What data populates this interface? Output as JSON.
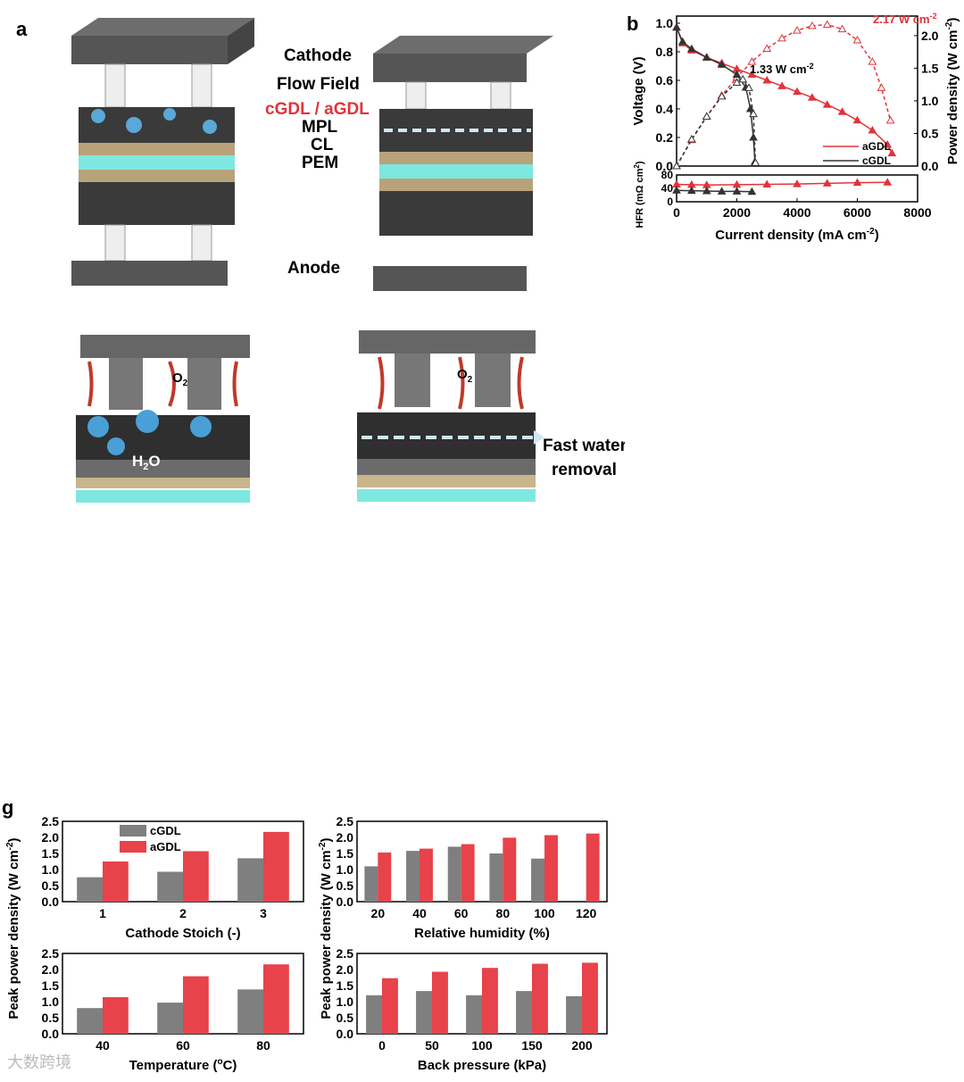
{
  "panel_a": {
    "letter": "a",
    "labels": {
      "cathode": "Cathode",
      "flow_field": "Flow Field",
      "gdl": "cGDL / aGDL",
      "mpl": "MPL",
      "cl": "CL",
      "pem": "PEM",
      "anode": "Anode",
      "o2_left": "O",
      "o2_right": "O",
      "sub2": "2",
      "h2o": "H",
      "h2o_sub": "2",
      "h2o_o": "O",
      "fast_water_1": "Fast water",
      "fast_water_2": "removal"
    }
  },
  "chart_data": [
    {
      "id": "b",
      "letter": "b",
      "type": "line",
      "title": "",
      "xlabel": "Current density (mA cm",
      "xlabel_sup": "-2",
      "ylabel": "Voltage (V)",
      "y2label": "Power density (W cm",
      "y2label_sup": "-2",
      "hfr_label": "HFR (mΩ cm",
      "hfr_label_sup": "2",
      "xlim": [
        0,
        8000
      ],
      "ylim": [
        0,
        1.05
      ],
      "y2lim": [
        0,
        2.3
      ],
      "hfr_ylim": [
        0,
        80
      ],
      "xticks": [
        0,
        2000,
        4000,
        6000,
        8000
      ],
      "yticks": [
        0.0,
        0.2,
        0.4,
        0.6,
        0.8,
        1.0
      ],
      "y2ticks": [
        0.0,
        0.5,
        1.0,
        1.5,
        2.0
      ],
      "hfr_ticks": [
        0,
        20,
        40,
        60,
        80
      ],
      "annotations": [
        "2.17 W cm",
        "1.33 W cm"
      ],
      "annotation_sup": "-2",
      "legend": [
        "aGDL",
        "cGDL"
      ],
      "series": [
        {
          "name": "aGDL",
          "axis": "voltage",
          "color": "#e0343b",
          "x": [
            0,
            200,
            500,
            1000,
            1500,
            2000,
            2500,
            3000,
            3500,
            4000,
            4500,
            5000,
            5500,
            6000,
            6500,
            7000,
            7150
          ],
          "y": [
            0.97,
            0.86,
            0.81,
            0.76,
            0.72,
            0.68,
            0.64,
            0.6,
            0.56,
            0.52,
            0.48,
            0.43,
            0.38,
            0.32,
            0.25,
            0.15,
            0.09
          ]
        },
        {
          "name": "aGDL",
          "axis": "power",
          "color": "#e0343b",
          "open": true,
          "x": [
            0,
            500,
            1000,
            1500,
            2000,
            2500,
            3000,
            3500,
            4000,
            4500,
            5000,
            5500,
            6000,
            6500,
            6800,
            7100
          ],
          "y": [
            0,
            0.4,
            0.76,
            1.08,
            1.36,
            1.6,
            1.8,
            1.96,
            2.08,
            2.15,
            2.17,
            2.1,
            1.93,
            1.6,
            1.2,
            0.7
          ]
        },
        {
          "name": "cGDL",
          "axis": "voltage",
          "color": "#333333",
          "x": [
            0,
            200,
            500,
            1000,
            1500,
            2000,
            2300,
            2450,
            2550,
            2600
          ],
          "y": [
            0.97,
            0.87,
            0.82,
            0.76,
            0.71,
            0.64,
            0.55,
            0.4,
            0.2,
            0.03
          ]
        },
        {
          "name": "cGDL",
          "axis": "power",
          "color": "#333333",
          "open": true,
          "x": [
            0,
            500,
            1000,
            1500,
            2000,
            2200,
            2400,
            2550,
            2620
          ],
          "y": [
            0,
            0.41,
            0.76,
            1.07,
            1.28,
            1.33,
            1.2,
            0.8,
            0.05
          ]
        },
        {
          "name": "aGDL",
          "axis": "hfr",
          "color": "#e0343b",
          "x": [
            0,
            500,
            1000,
            2000,
            3000,
            4000,
            5000,
            6000,
            7000
          ],
          "y": [
            52,
            51,
            50,
            51,
            52,
            53,
            55,
            57,
            58
          ]
        },
        {
          "name": "cGDL",
          "axis": "hfr",
          "color": "#333333",
          "x": [
            0,
            500,
            1000,
            1500,
            2000,
            2500
          ],
          "y": [
            34,
            33,
            32,
            31,
            31,
            30
          ]
        }
      ]
    },
    {
      "id": "g1",
      "type": "bar",
      "letter": "g",
      "xlabel": "Cathode Stoich (-)",
      "categories": [
        "1",
        "2",
        "3"
      ],
      "ylim": [
        0,
        2.5
      ],
      "yticks": [
        "0.0",
        "0.5",
        "1.0",
        "1.5",
        "2.0",
        "2.5"
      ],
      "legend": [
        "cGDL",
        "aGDL"
      ],
      "series": [
        {
          "name": "cGDL",
          "color": "#7f7f7f",
          "values": [
            0.76,
            0.93,
            1.35
          ]
        },
        {
          "name": "aGDL",
          "color": "#e8424a",
          "values": [
            1.25,
            1.57,
            2.17
          ]
        }
      ]
    },
    {
      "id": "g2",
      "type": "bar",
      "xlabel": "Relative humidity (%)",
      "categories": [
        "20",
        "40",
        "60",
        "80",
        "100",
        "120"
      ],
      "ylim": [
        0,
        2.5
      ],
      "yticks": [
        "0.0",
        "0.5",
        "1.0",
        "1.5",
        "2.0",
        "2.5"
      ],
      "series": [
        {
          "name": "cGDL",
          "color": "#7f7f7f",
          "values": [
            1.1,
            1.58,
            1.71,
            1.5,
            1.34,
            0
          ]
        },
        {
          "name": "aGDL",
          "color": "#e8424a",
          "values": [
            1.53,
            1.65,
            1.79,
            1.99,
            2.07,
            2.12
          ]
        }
      ]
    },
    {
      "id": "g3",
      "type": "bar",
      "xlabel": "Temperature (",
      "xlabel_sup": "o",
      "xlabel_end": "C)",
      "categories": [
        "40",
        "60",
        "80"
      ],
      "ylim": [
        0,
        2.5
      ],
      "yticks": [
        "0.0",
        "0.5",
        "1.0",
        "1.5",
        "2.0",
        "2.5"
      ],
      "series": [
        {
          "name": "cGDL",
          "color": "#7f7f7f",
          "values": [
            0.8,
            0.97,
            1.38
          ]
        },
        {
          "name": "aGDL",
          "color": "#e8424a",
          "values": [
            1.14,
            1.79,
            2.16
          ]
        }
      ]
    },
    {
      "id": "g4",
      "type": "bar",
      "xlabel": "Back pressure (kPa)",
      "categories": [
        "0",
        "50",
        "100",
        "150",
        "200"
      ],
      "ylim": [
        0,
        2.5
      ],
      "yticks": [
        "0.0",
        "0.5",
        "1.0",
        "1.5",
        "2.0",
        "2.5"
      ],
      "series": [
        {
          "name": "cGDL",
          "color": "#7f7f7f",
          "values": [
            1.2,
            1.33,
            1.2,
            1.33,
            1.17
          ]
        },
        {
          "name": "aGDL",
          "color": "#e8424a",
          "values": [
            1.73,
            1.93,
            2.05,
            2.18,
            2.21
          ]
        }
      ]
    }
  ],
  "shared_ylabel": "Peak power density (W cm",
  "shared_ylabel_sup": "-2",
  "watermark": "大数跨境"
}
